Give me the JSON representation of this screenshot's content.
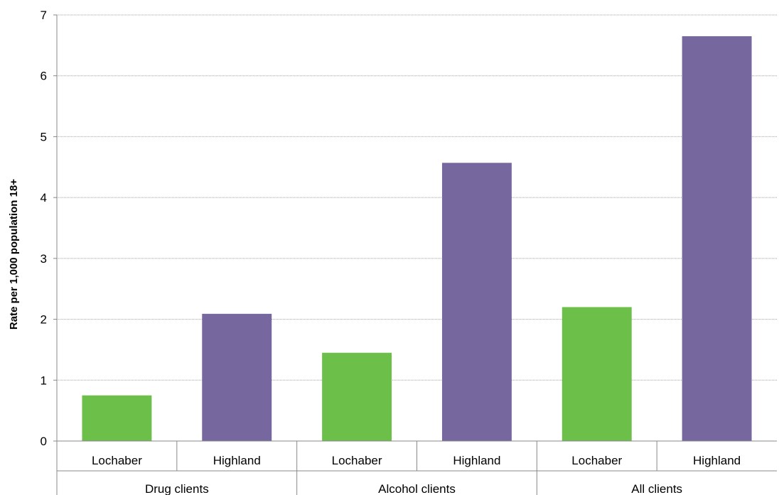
{
  "chart_data": {
    "type": "bar",
    "title": "",
    "xlabel": "",
    "ylabel": "Rate per 1,000 population 18+",
    "ylim": [
      0,
      7
    ],
    "yticks": [
      0,
      1,
      2,
      3,
      4,
      5,
      6,
      7
    ],
    "grid": true,
    "groups": [
      {
        "label": "Drug clients",
        "bars": [
          {
            "category": "Lochaber",
            "value": 0.75,
            "color": "#6cc04a"
          },
          {
            "category": "Highland",
            "value": 2.09,
            "color": "#77679f"
          }
        ]
      },
      {
        "label": "Alcohol clients",
        "bars": [
          {
            "category": "Lochaber",
            "value": 1.45,
            "color": "#6cc04a"
          },
          {
            "category": "Highland",
            "value": 4.57,
            "color": "#77679f"
          }
        ]
      },
      {
        "label": "All clients",
        "bars": [
          {
            "category": "Lochaber",
            "value": 2.2,
            "color": "#6cc04a"
          },
          {
            "category": "Highland",
            "value": 6.65,
            "color": "#77679f"
          }
        ]
      }
    ]
  }
}
